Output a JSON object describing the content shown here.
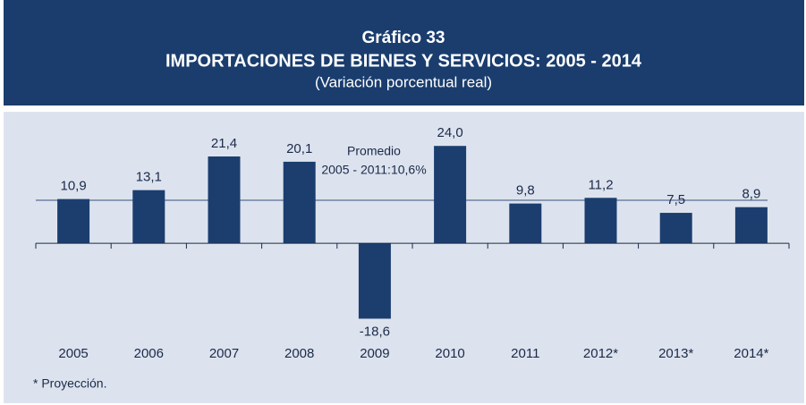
{
  "chart_data": {
    "type": "bar",
    "title": "Gráfico 33",
    "subtitle": "IMPORTACIONES DE BIENES Y SERVICIOS: 2005 - 2014",
    "subtitle2": "(Variación porcentual real)",
    "categories": [
      "2005",
      "2006",
      "2007",
      "2008",
      "2009",
      "2010",
      "2011",
      "2012*",
      "2013*",
      "2014*"
    ],
    "values": [
      10.9,
      13.1,
      21.4,
      20.1,
      -18.6,
      24.0,
      9.8,
      11.2,
      7.5,
      8.9
    ],
    "value_labels": [
      "10,9",
      "13,1",
      "21,4",
      "20,1",
      "-18,6",
      "24,0",
      "9,8",
      "11,2",
      "7,5",
      "8,9"
    ],
    "color": "#1b3e6f",
    "ylim": [
      -25,
      30
    ],
    "reference_line": {
      "value": 10.6,
      "label": [
        "Promedio",
        "2005 - 2011:10,6%"
      ]
    },
    "footnote": "* Proyección."
  }
}
